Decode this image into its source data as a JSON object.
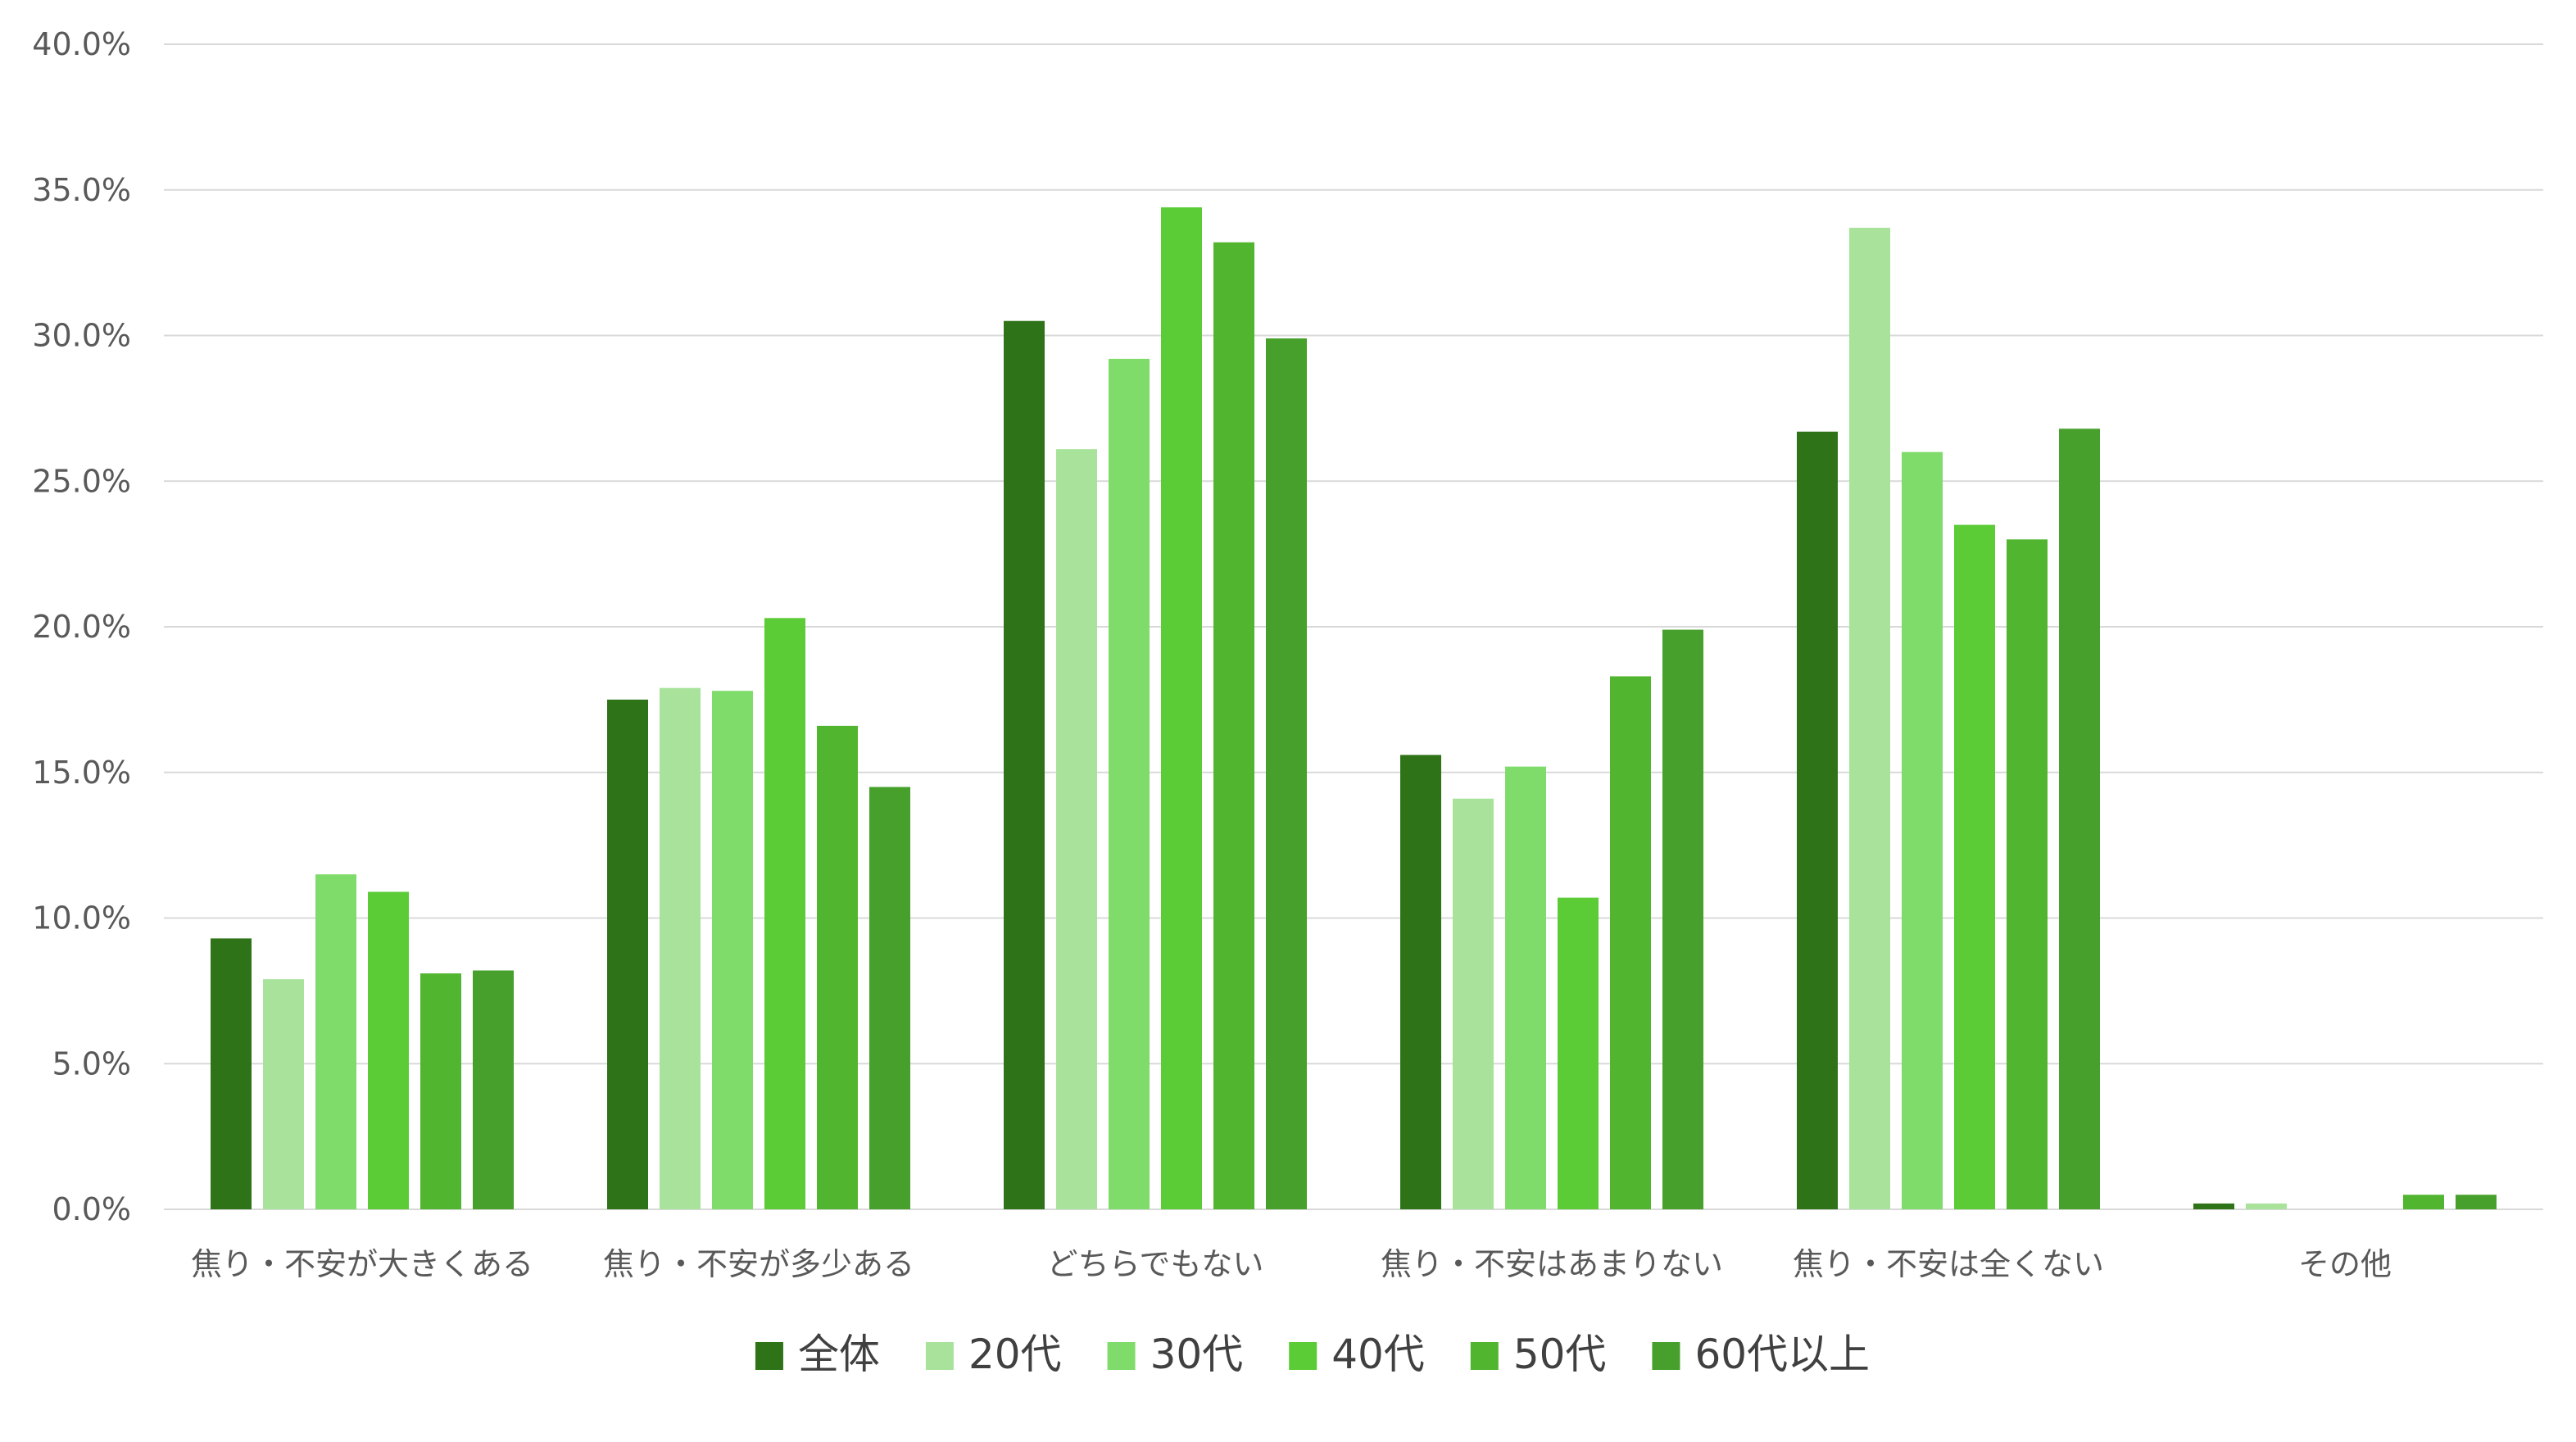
{
  "chart_data": {
    "type": "bar",
    "categories": [
      "焦り・不安が大きくある",
      "焦り・不安が多少ある",
      "どちらでもない",
      "焦り・不安はあまりない",
      "焦り・不安は全くない",
      "その他"
    ],
    "series": [
      {
        "name": "全体",
        "color": "#2e7318",
        "values": [
          9.3,
          17.5,
          30.5,
          15.6,
          26.7,
          0.2
        ]
      },
      {
        "name": "20代",
        "color": "#a9e39b",
        "values": [
          7.9,
          17.9,
          26.1,
          14.1,
          33.7,
          0.2
        ]
      },
      {
        "name": "30代",
        "color": "#7fdb6a",
        "values": [
          11.5,
          17.8,
          29.2,
          15.2,
          26.0,
          0.0
        ]
      },
      {
        "name": "40代",
        "color": "#5ccc36",
        "values": [
          10.9,
          20.3,
          34.4,
          10.7,
          23.5,
          0.0
        ]
      },
      {
        "name": "50代",
        "color": "#52b530",
        "values": [
          8.1,
          16.6,
          33.2,
          18.3,
          23.0,
          0.5
        ]
      },
      {
        "name": "60代以上",
        "color": "#46a02b",
        "values": [
          8.2,
          14.5,
          29.9,
          19.9,
          26.8,
          0.5
        ]
      }
    ],
    "yticks": [
      "0.0%",
      "5.0%",
      "10.0%",
      "15.0%",
      "20.0%",
      "25.0%",
      "30.0%",
      "35.0%",
      "40.0%"
    ],
    "ylim": [
      0,
      40
    ],
    "title": "",
    "xlabel": "",
    "ylabel": "",
    "grid": true,
    "legend_position": "bottom"
  }
}
